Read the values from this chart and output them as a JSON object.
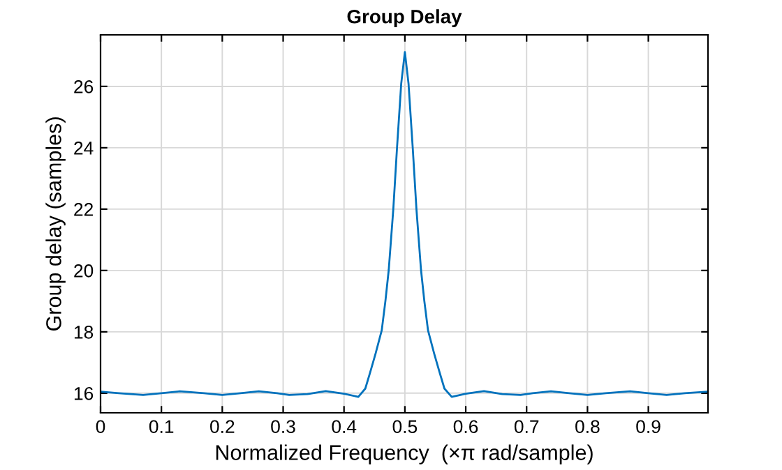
{
  "chart_data": {
    "type": "line",
    "title": "Group Delay",
    "xlabel": "Normalized Frequency  (×π rad/sample)",
    "ylabel": "Group delay (samples)",
    "x": [
      0,
      0.03,
      0.07,
      0.1,
      0.13,
      0.17,
      0.2,
      0.23,
      0.26,
      0.29,
      0.31,
      0.34,
      0.37,
      0.4,
      0.4235,
      0.435,
      0.443,
      0.452,
      0.462,
      0.468,
      0.4735,
      0.481,
      0.487,
      0.494,
      0.5,
      0.506,
      0.513,
      0.519,
      0.5265,
      0.532,
      0.538,
      0.548,
      0.557,
      0.565,
      0.577,
      0.6,
      0.63,
      0.66,
      0.69,
      0.71,
      0.74,
      0.77,
      0.8,
      0.83,
      0.87,
      0.9,
      0.93,
      0.96,
      0.998
    ],
    "series": [
      {
        "color": "#0072bd",
        "values": [
          16.05,
          16.0,
          15.94,
          16.0,
          16.06,
          16.0,
          15.94,
          16.0,
          16.06,
          16.0,
          15.94,
          15.97,
          16.07,
          15.98,
          15.88,
          16.15,
          16.68,
          17.3,
          18.05,
          19.0,
          20.02,
          22.0,
          23.97,
          26.09,
          27.12,
          26.09,
          23.97,
          22.0,
          20.02,
          19.0,
          18.05,
          17.3,
          16.68,
          16.15,
          15.88,
          15.98,
          16.07,
          15.97,
          15.94,
          16.0,
          16.06,
          16.0,
          15.94,
          16.0,
          16.06,
          16.0,
          15.94,
          16.0,
          16.05
        ]
      }
    ],
    "xlim": [
      0,
      0.998
    ],
    "ylim": [
      15.36,
      27.68
    ],
    "xticks": [
      0,
      0.1,
      0.2,
      0.3,
      0.4,
      0.5,
      0.6,
      0.7,
      0.8,
      0.9
    ],
    "yticks": [
      16,
      18,
      20,
      22,
      24,
      26
    ],
    "grid": true,
    "legend": false
  }
}
